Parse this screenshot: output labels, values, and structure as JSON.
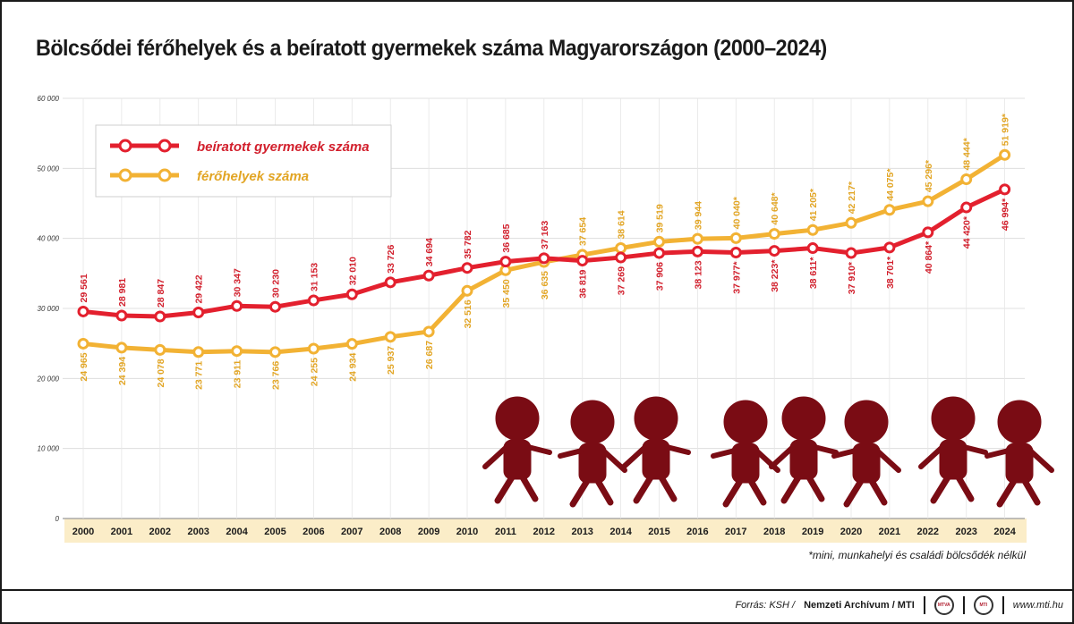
{
  "title": "Bölcsődei férőhelyek és a beíratott gyermekek száma Magyarországon (2000–2024)",
  "footnote": "*mini, munkahelyi és családi bölcsődék nélkül",
  "footer": {
    "source_prefix": "Forrás: KSH /",
    "source_bold": "Nemzeti Archívum / MTI",
    "logo1_text": "MTVA",
    "logo2_text": "MTI",
    "site": "www.mti.hu",
    "icons": [
      "mtva-logo-icon",
      "mti-logo-icon"
    ]
  },
  "colors": {
    "enrolled": "#e3202e",
    "enrolled_label": "#d21f2c",
    "capacity": "#f2b234",
    "capacity_label": "#e2a524",
    "axis_band": "#fbedc8",
    "children": "#7a0c14",
    "legend_border": "#cfcfcf"
  },
  "decoration": {
    "icon": "children-silhouettes-icon",
    "count": 8
  },
  "chart_data": {
    "type": "line",
    "categories": [
      "2000",
      "2001",
      "2002",
      "2003",
      "2004",
      "2005",
      "2006",
      "2007",
      "2008",
      "2009",
      "2010",
      "2011",
      "2012",
      "2013",
      "2014",
      "2015",
      "2016",
      "2017",
      "2018",
      "2019",
      "2020",
      "2021",
      "2022",
      "2023",
      "2024"
    ],
    "ylim": [
      0,
      60000
    ],
    "yticks": [
      0,
      10000,
      20000,
      30000,
      40000,
      50000,
      60000
    ],
    "ytick_labels": [
      "0",
      "10 000",
      "20 000",
      "30 000",
      "40 000",
      "50 000",
      "60 000"
    ],
    "grid": true,
    "legend_position": "top-left",
    "series": [
      {
        "key": "enrolled",
        "name": "beíratott gyermekek száma",
        "values": [
          29561,
          28981,
          28847,
          29422,
          30347,
          30230,
          31153,
          32010,
          33726,
          34694,
          35782,
          36685,
          37163,
          36819,
          37269,
          37906,
          38123,
          37977,
          38223,
          38611,
          37910,
          38701,
          40864,
          44420,
          46994
        ],
        "labels": [
          "29 561",
          "28 981",
          "28 847",
          "29 422",
          "30 347",
          "30 230",
          "31 153",
          "32 010",
          "33 726",
          "34 694",
          "35 782",
          "36 685",
          "37 163",
          "36 819",
          "37 269",
          "37 906",
          "38 123",
          "37 977*",
          "38 223*",
          "38 611*",
          "37 910*",
          "38 701*",
          "40 864*",
          "44 420*",
          "46 994*"
        ]
      },
      {
        "key": "capacity",
        "name": "férőhelyek száma",
        "values": [
          24965,
          24394,
          24078,
          23771,
          23911,
          23766,
          24255,
          24934,
          25937,
          26687,
          32516,
          35450,
          36635,
          37654,
          38614,
          39519,
          39944,
          40040,
          40648,
          41205,
          42217,
          44075,
          45296,
          48444,
          51919
        ],
        "labels": [
          "24 965",
          "24 394",
          "24 078",
          "23 771",
          "23 911",
          "23 766",
          "24 255",
          "24 934",
          "25 937",
          "26 687",
          "32 516",
          "35 450",
          "36 635",
          "37 654",
          "38 614",
          "39 519",
          "39 944",
          "40 040*",
          "40 648*",
          "41 205*",
          "42 217*",
          "44 075*",
          "45 296*",
          "48 444*",
          "51 919*"
        ]
      }
    ]
  }
}
